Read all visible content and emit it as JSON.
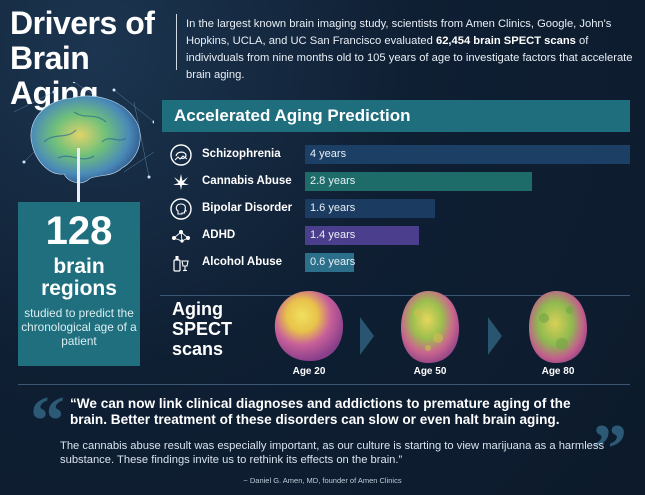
{
  "header": {
    "title_line1": "Drivers of",
    "title_line2": "Brain Aging",
    "intro_before": "In the largest known brain imaging study, scientists from Amen Clinics, Google, John's Hopkins, UCLA, and UC San Francisco evaluated ",
    "intro_bold": "62,454 brain SPECT scans",
    "intro_after": " of indivivduals from nine months old to 105 years of age to investigate factors that accelerate brain aging."
  },
  "regions_box": {
    "number": "128",
    "line1": "brain",
    "line2": "regions",
    "caption": "studied to predict the chronological age of a patient"
  },
  "chart_data": {
    "type": "bar",
    "title": "Accelerated Aging Prediction",
    "categories": [
      "Schizophrenia",
      "Cannabis Abuse",
      "Bipolar Disorder",
      "ADHD",
      "Alcohol Abuse"
    ],
    "values": [
      4,
      2.8,
      1.6,
      1.4,
      0.6
    ],
    "value_labels": [
      "4 years",
      "2.8 years",
      "1.6 years",
      "1.4 years",
      "0.6 years"
    ],
    "unit": "years",
    "xlim": [
      0,
      4
    ],
    "orientation": "horizontal",
    "icons": [
      "brain-waves-icon",
      "cannabis-leaf-icon",
      "head-profile-icon",
      "network-icon",
      "bottle-glass-icon"
    ],
    "colors": [
      "#1c3f66",
      "#1d6c6a",
      "#1b3c60",
      "#4b3e8c",
      "#2c6f8a"
    ]
  },
  "spect": {
    "label_line1": "Aging",
    "label_line2": "SPECT",
    "label_line3": "scans",
    "ages": [
      "Age 20",
      "Age 50",
      "Age 80"
    ]
  },
  "quote": {
    "main": "“We can now link clinical diagnoses and addictions to premature aging of the brain. Better treatment of these disorders can slow or even halt brain aging.",
    "body": "The cannabis abuse result was especially important, as our culture is starting to view marijuana as a harmless substance. These findings invite us to rethink its effects on the brain.”",
    "citation": "~ Daniel G. Amen, MD, founder of Amen Clinics"
  }
}
